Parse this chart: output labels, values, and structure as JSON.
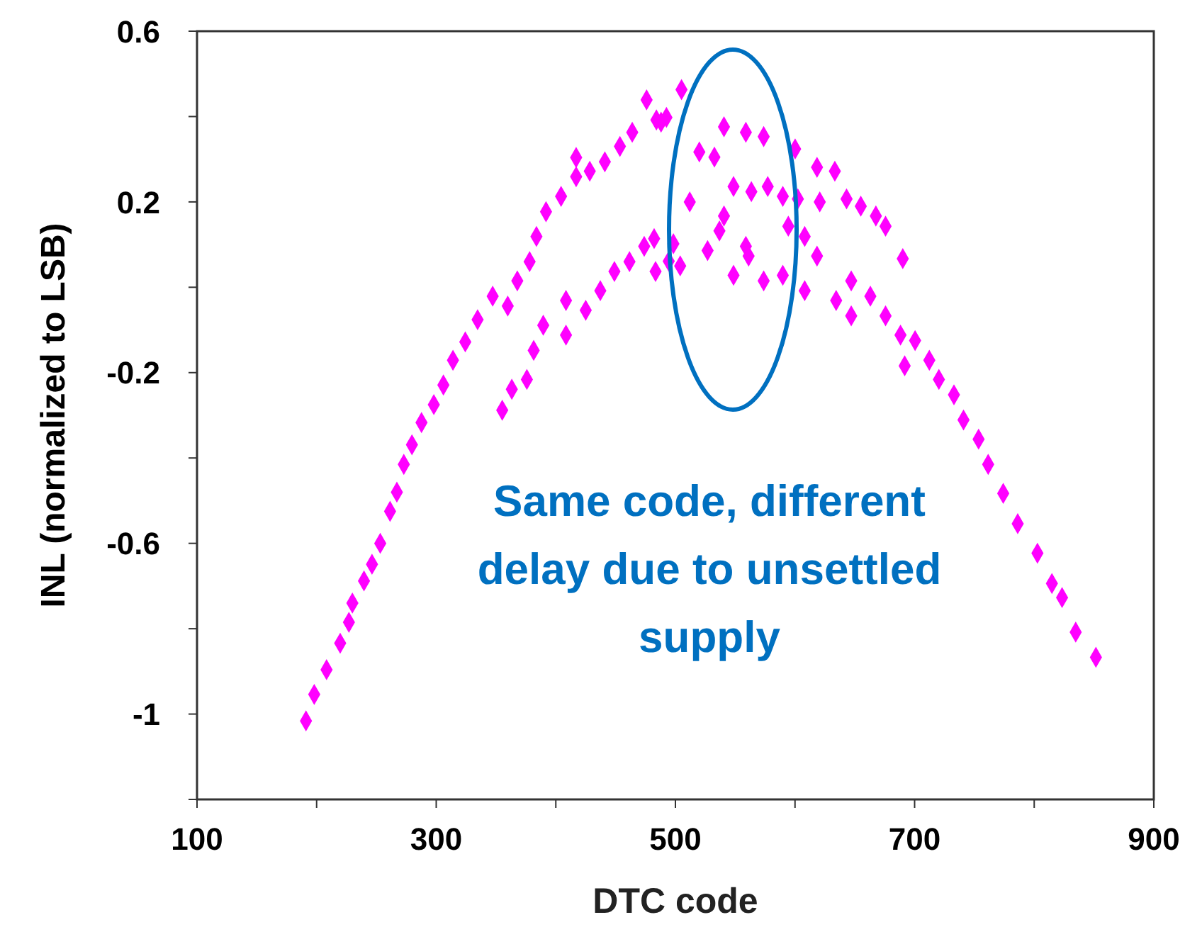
{
  "chart_data": {
    "type": "scatter",
    "xlabel": "DTC code",
    "ylabel": "INL (normalized to LSB)",
    "annotations": [
      "Same code, different delay due to unsettled supply"
    ],
    "xlim": [
      100,
      900
    ],
    "xticks": [
      100,
      {
        "value": 200,
        "label": null
      },
      300,
      {
        "value": 400,
        "label": null
      },
      500,
      {
        "value": 600,
        "label": null
      },
      700,
      {
        "value": 800,
        "label": null
      },
      900
    ],
    "ylim": [
      -1.2,
      0.6
    ],
    "yticks": [
      {
        "value": -1.2,
        "label": null
      },
      -1,
      {
        "value": -0.8,
        "label": null
      },
      -0.6,
      {
        "value": -0.4,
        "label": null
      },
      -0.2,
      {
        "value": 0,
        "label": null
      },
      0.2,
      {
        "value": 0.4,
        "label": null
      },
      0.6
    ],
    "grid": false,
    "legend": false,
    "marker": "diamond",
    "series": [
      {
        "color": "#ff00ff",
        "x": [
          191.1,
          198,
          208.3,
          219.7,
          227,
          229.9,
          239.6,
          246.3,
          253.2,
          261.4,
          267.1,
          272.9,
          279.7,
          287.7,
          298,
          306,
          314,
          324.3,
          334.6,
          347.2,
          359.8,
          367.8,
          378.1,
          383.8,
          391.8,
          404.4,
          417,
          417,
          428.4,
          441,
          453.6,
          463.9,
          475.9,
          484.1,
          488,
          492.5,
          505.1,
          355.2,
          363.2,
          375.8,
          381.5,
          389.5,
          408.5,
          408.5,
          425,
          437.2,
          449,
          461.6,
          473.9,
          482.2,
          483.4,
          494.4,
          498.3,
          504,
          512,
          520,
          526.9,
          532.6,
          536.8,
          540.6,
          540.6,
          548.6,
          548.6,
          558.9,
          558.9,
          561.2,
          563.5,
          573.8,
          573.8,
          577.2,
          589.8,
          589.8,
          594.4,
          600.1,
          602.4,
          608.1,
          608.1,
          618.4,
          618.4,
          620.7,
          633.3,
          634.4,
          643.1,
          647,
          647,
          655,
          663,
          667.6,
          675.7,
          675.7,
          688.2,
          690.1,
          691.7,
          700.4,
          712.3,
          720.3,
          732.9,
          740.9,
          753.5,
          761.5,
          774.1,
          786.2,
          802.7,
          814.8,
          823.3,
          834.7,
          851.6
        ],
        "values": [
          -1.016,
          -0.954,
          -0.896,
          -0.834,
          -0.785,
          -0.74,
          -0.688,
          -0.649,
          -0.6,
          -0.525,
          -0.48,
          -0.415,
          -0.369,
          -0.317,
          -0.275,
          -0.229,
          -0.171,
          -0.128,
          -0.076,
          -0.021,
          -0.044,
          0.015,
          0.06,
          0.119,
          0.177,
          0.213,
          0.259,
          0.304,
          0.272,
          0.294,
          0.33,
          0.363,
          0.439,
          0.392,
          0.387,
          0.398,
          0.463,
          -0.288,
          -0.239,
          -0.216,
          -0.148,
          -0.089,
          -0.031,
          -0.112,
          -0.054,
          -0.008,
          0.037,
          0.06,
          0.096,
          0.114,
          0.037,
          0.061,
          0.102,
          0.05,
          0.2,
          0.317,
          0.086,
          0.305,
          0.132,
          0.376,
          0.167,
          0.236,
          0.028,
          0.363,
          0.096,
          0.073,
          0.224,
          0.353,
          0.015,
          0.236,
          0.213,
          0.028,
          0.143,
          0.324,
          0.207,
          -0.008,
          0.119,
          0.281,
          0.073,
          0.2,
          0.272,
          -0.031,
          0.207,
          -0.067,
          0.015,
          0.19,
          -0.021,
          0.167,
          0.143,
          -0.067,
          -0.112,
          0.067,
          -0.184,
          -0.125,
          -0.171,
          -0.216,
          -0.252,
          -0.311,
          -0.356,
          -0.415,
          -0.483,
          -0.554,
          -0.623,
          -0.694,
          -0.727,
          -0.808,
          -0.867
        ]
      }
    ]
  }
}
